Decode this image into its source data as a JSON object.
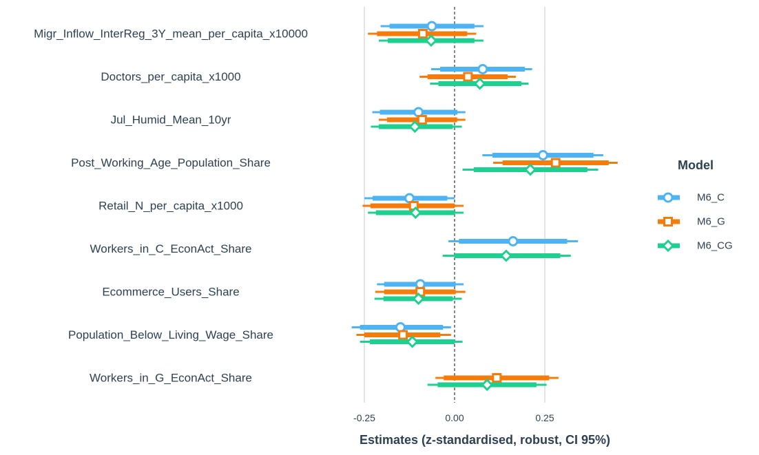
{
  "chart_data": {
    "type": "forest",
    "xlabel": "Estimates (z-standardised, robust, CI 95%)",
    "xlim": [
      -0.3,
      0.48
    ],
    "xticks": [
      -0.25,
      0.0,
      0.25
    ],
    "xtick_labels": [
      "-0.25",
      "0.00",
      "0.25"
    ],
    "reference_line": 0,
    "grid": "vertical major lines",
    "legend": {
      "title": "Model",
      "placement": "right"
    },
    "categories": [
      "Migr_Inflow_InterReg_3Y_mean_per_capita_x10000",
      "Doctors_per_capita_x1000",
      "Jul_Humid_Mean_10yr",
      "Post_Working_Age_Population_Share",
      "Retail_N_per_capita_x1000",
      "Workers_in_C_EconAct_Share",
      "Ecommerce_Users_Share",
      "Population_Below_Living_Wage_Share",
      "Workers_in_G_EconAct_Share"
    ],
    "series": [
      {
        "name": "M6_C",
        "color": "#4db3f2",
        "marker": "circle",
        "estimates": [
          -0.063,
          0.078,
          -0.1,
          0.245,
          -0.125,
          0.162,
          -0.095,
          -0.15,
          null
        ],
        "inner": [
          [
            -0.18,
            0.055
          ],
          [
            -0.04,
            0.195
          ],
          [
            -0.207,
            0.008
          ],
          [
            0.105,
            0.385
          ],
          [
            -0.227,
            -0.02
          ],
          [
            0.012,
            0.312
          ],
          [
            -0.195,
            0.003
          ],
          [
            -0.262,
            -0.032
          ],
          null
        ],
        "ci95": [
          [
            -0.205,
            0.08
          ],
          [
            -0.065,
            0.215
          ],
          [
            -0.228,
            0.03
          ],
          [
            0.077,
            0.412
          ],
          [
            -0.25,
            0.0
          ],
          [
            -0.017,
            0.342
          ],
          [
            -0.215,
            0.025
          ],
          [
            -0.285,
            -0.01
          ],
          null
        ]
      },
      {
        "name": "M6_G",
        "color": "#f57b0a",
        "marker": "square",
        "estimates": [
          -0.088,
          0.037,
          -0.09,
          0.28,
          -0.113,
          null,
          -0.095,
          -0.143,
          0.117
        ],
        "inner": [
          [
            -0.215,
            0.035
          ],
          [
            -0.075,
            0.147
          ],
          [
            -0.187,
            0.007
          ],
          [
            0.133,
            0.427
          ],
          [
            -0.233,
            0.0
          ],
          null,
          -0.195,
          -0.25,
          -0.03
        ],
        "ci95": [
          [
            -0.24,
            0.06
          ],
          [
            -0.097,
            0.17
          ],
          [
            -0.21,
            0.03
          ],
          [
            0.107,
            0.452
          ],
          [
            -0.255,
            0.025
          ],
          null,
          [
            -0.22,
            0.03
          ],
          [
            -0.272,
            -0.01
          ],
          [
            -0.053,
            0.288
          ]
        ],
        "inner_fix": [
          null,
          null,
          null,
          null,
          null,
          null,
          [
            -0.195,
            0.003
          ],
          [
            -0.25,
            -0.04
          ],
          [
            -0.03,
            0.262
          ]
        ]
      },
      {
        "name": "M6_CG",
        "color": "#1fcf8f",
        "marker": "diamond",
        "estimates": [
          -0.065,
          0.07,
          -0.11,
          0.21,
          -0.108,
          0.143,
          -0.1,
          -0.117,
          0.09
        ],
        "inner": [
          [
            -0.185,
            0.055
          ],
          [
            -0.045,
            0.185
          ],
          [
            -0.21,
            -0.005
          ],
          [
            0.053,
            0.368
          ],
          [
            -0.218,
            0.0
          ],
          [
            0.0,
            0.293
          ],
          [
            -0.197,
            -0.005
          ],
          [
            -0.235,
            0.0
          ],
          [
            -0.047,
            0.227
          ]
        ],
        "ci95": [
          [
            -0.21,
            0.08
          ],
          [
            -0.068,
            0.205
          ],
          [
            -0.232,
            0.02
          ],
          [
            0.022,
            0.398
          ],
          [
            -0.24,
            0.025
          ],
          [
            -0.033,
            0.322
          ],
          [
            -0.222,
            0.02
          ],
          [
            -0.262,
            0.022
          ],
          [
            -0.075,
            0.255
          ]
        ]
      }
    ]
  }
}
